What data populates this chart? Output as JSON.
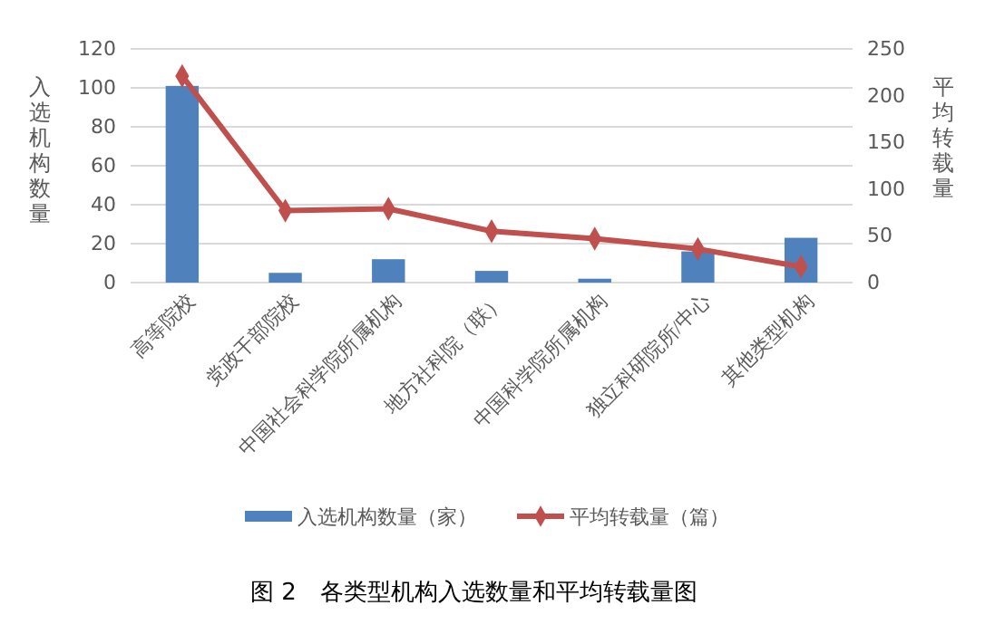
{
  "chart_data": {
    "type": "bar",
    "categories": [
      "高等院校",
      "党政干部院校",
      "中国社会科学院所属机构",
      "地方社科院（联）",
      "中国科学院所属机构",
      "独立科研院所/中心",
      "其他类型机构"
    ],
    "ylabel": "入选机构数量",
    "y2label": "平均转载量",
    "ylim": [
      0,
      120
    ],
    "yticks": [
      0,
      20,
      40,
      60,
      80,
      100,
      120
    ],
    "y2lim": [
      0,
      250
    ],
    "y2ticks": [
      0,
      50,
      100,
      150,
      200,
      250
    ],
    "grid": "y",
    "legend": "bottom",
    "series": [
      {
        "name": "入选机构数量（家）",
        "color": "#4f81bd",
        "values": [
          101,
          5,
          12,
          6,
          2,
          16,
          23
        ]
      },
      {
        "name": "平均转载量（篇）",
        "type": "line",
        "axis": "y2",
        "color": "#c0504d",
        "marker": "diamond",
        "values": [
          221,
          77,
          79,
          55,
          47,
          36,
          17
        ]
      }
    ],
    "annotations": [
      "图 2　各类型机构入选数量和平均转载量图"
    ]
  }
}
